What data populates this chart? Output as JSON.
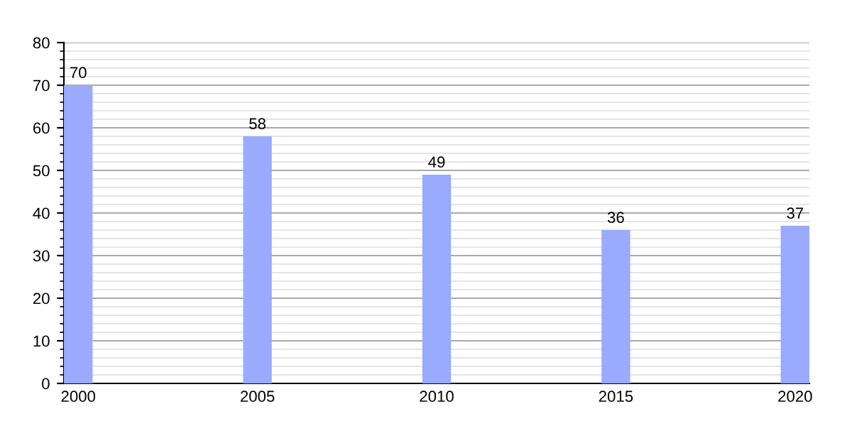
{
  "chart_data": {
    "type": "bar",
    "categories": [
      "2000",
      "2005",
      "2010",
      "2015",
      "2020"
    ],
    "values": [
      70,
      58,
      49,
      36,
      37
    ],
    "color": "#99aaff",
    "ylim": [
      0,
      80
    ],
    "yticks": [
      0,
      10,
      20,
      30,
      40,
      50,
      60,
      70,
      80
    ],
    "grid": "y",
    "data_labels": true
  }
}
